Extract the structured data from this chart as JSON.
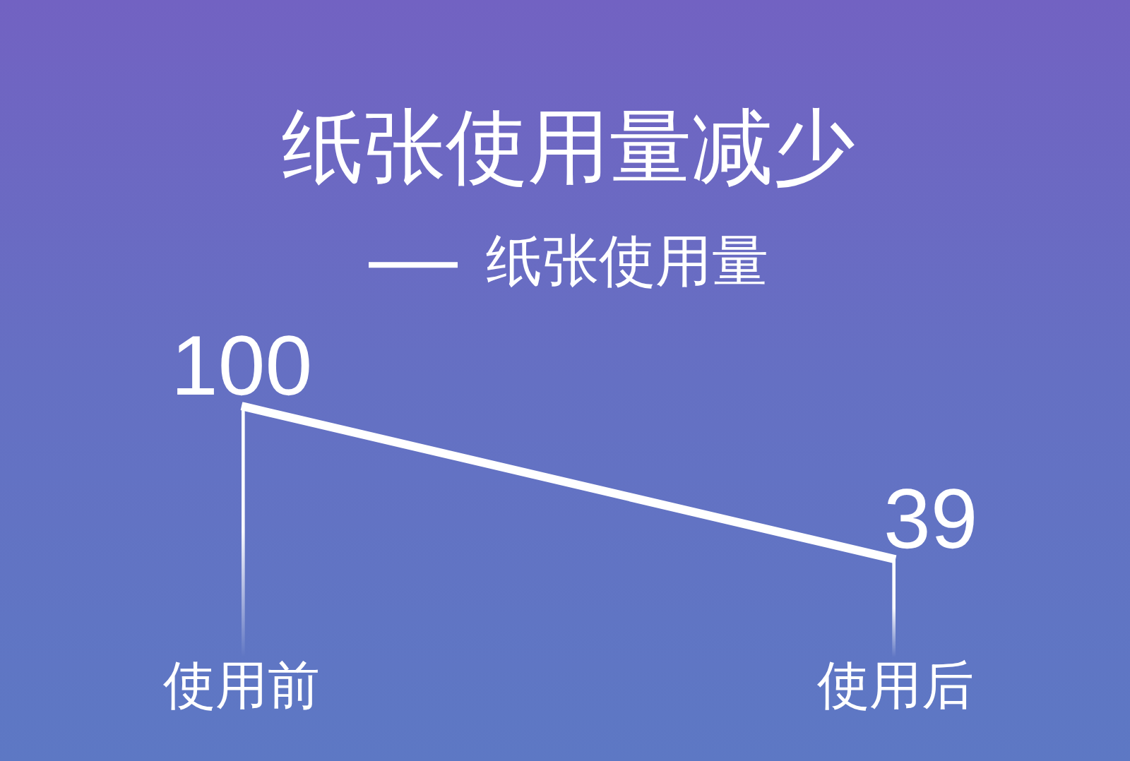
{
  "chart_data": {
    "type": "line",
    "title": "纸张使用量减少",
    "categories": [
      "使用前",
      "使用后"
    ],
    "series": [
      {
        "name": "纸张使用量",
        "color": "#ffffff",
        "values": [
          100,
          39
        ],
        "value_labels": [
          "100",
          "39"
        ]
      },
      {
        "type": "bar",
        "color": "#ffffff",
        "values": [
          100,
          39
        ]
      }
    ],
    "legend": "top",
    "marker": "none",
    "grid": false,
    "tick_labels": "x",
    "line_style": "solid"
  }
}
